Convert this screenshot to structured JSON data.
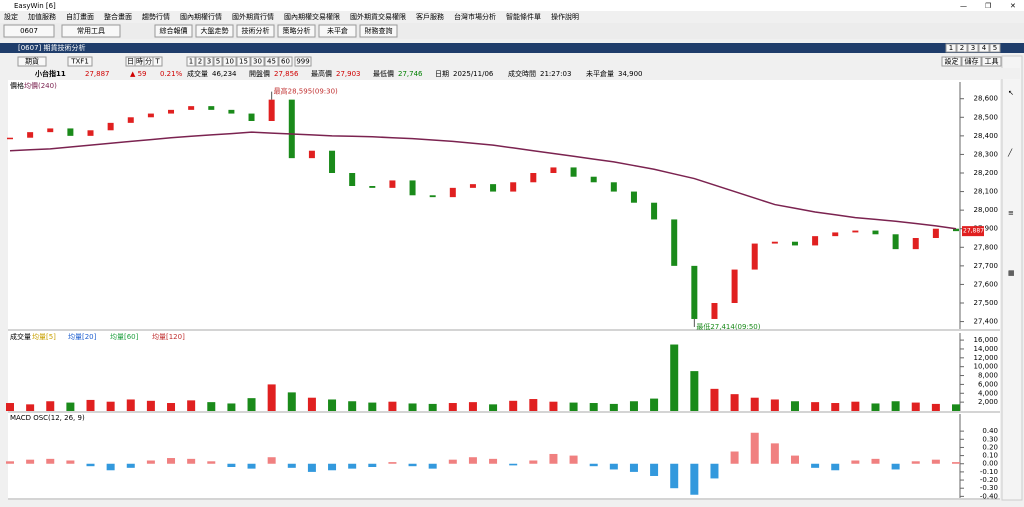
{
  "window": {
    "title": "EasyWin [6]"
  },
  "menu": [
    "設定",
    "加值服務",
    "自訂畫面",
    "整合畫面",
    "趨勢行情",
    "國內期權行情",
    "國外期貨行情",
    "國內期權交易權限",
    "國外期貨交易權限",
    "客戶服務",
    "台灣市場分析",
    "智能條件單",
    "操作說明"
  ],
  "toolbar": {
    "code": "0607",
    "tools": "常用工具",
    "buttons": [
      "綜合報價",
      "大盤走勢",
      "技術分析",
      "策略分析",
      "未平倉",
      "財務查詢"
    ]
  },
  "panel": {
    "title": "[0607] 期貨技術分析",
    "layouts": [
      "1",
      "2",
      "3",
      "4",
      "5"
    ],
    "product": "期貨",
    "symbol": "TXF1",
    "periods": [
      "日",
      "時",
      "分",
      "T"
    ],
    "intervals": [
      "1",
      "2",
      "3",
      "5",
      "10",
      "15",
      "30",
      "45",
      "60"
    ],
    "count": "999",
    "actions": [
      "設定",
      "儲存",
      "工具"
    ]
  },
  "quote": {
    "name": "小台指11",
    "price": "27,887",
    "change": "▲ 59",
    "pct": "0.21%",
    "fields": [
      {
        "label": "成交量",
        "value": "46,234",
        "color": "#000000"
      },
      {
        "label": "開盤價",
        "value": "27,856",
        "color": "#d00000"
      },
      {
        "label": "最高價",
        "value": "27,903",
        "color": "#d00000"
      },
      {
        "label": "最低價",
        "value": "27,746",
        "color": "#008000"
      },
      {
        "label": "日期",
        "value": "2025/11/06",
        "color": "#000000"
      },
      {
        "label": "成交時間",
        "value": "21:27:03",
        "color": "#000000"
      },
      {
        "label": "未平倉量",
        "value": "34,900",
        "color": "#000000"
      }
    ]
  },
  "chart_data": [
    {
      "type": "candlestick",
      "title": "價格",
      "up_color": "#e02020",
      "down_color": "#1a8a1a",
      "series": [
        {
          "name": "價格",
          "color": "#1a8a1a",
          "values": [
            28390,
            28420,
            28440,
            28400,
            28430,
            28470,
            28500,
            28520,
            28540,
            28560,
            28540,
            28520,
            28480,
            28595,
            28280,
            28320,
            28200,
            28130,
            28120,
            28160,
            28080,
            28070,
            28120,
            28140,
            28100,
            28150,
            28200,
            28230,
            28180,
            28150,
            28100,
            28040,
            27950,
            27700,
            27414,
            27500,
            27680,
            27820,
            27830,
            27810,
            27860,
            27880,
            27890,
            27870,
            27790,
            27850,
            27900,
            27887
          ]
        },
        {
          "name": "均價(240)",
          "color": "#7b2350",
          "values": [
            28320,
            28325,
            28330,
            28340,
            28350,
            28360,
            28370,
            28380,
            28390,
            28398,
            28405,
            28412,
            28420,
            28415,
            28410,
            28405,
            28400,
            28398,
            28395,
            28390,
            28385,
            28378,
            28370,
            28360,
            28350,
            28335,
            28320,
            28305,
            28290,
            28275,
            28260,
            28240,
            28220,
            28195,
            28170,
            28135,
            28100,
            28065,
            28030,
            28010,
            27990,
            27975,
            27960,
            27950,
            27940,
            27928,
            27915,
            27900
          ]
        }
      ],
      "ylim": [
        27360,
        28690
      ],
      "yticks": [
        {
          "value": 28600,
          "label": "28,600"
        },
        {
          "value": 28500,
          "label": "28,500"
        },
        {
          "value": 28400,
          "label": "28,400"
        },
        {
          "value": 28300,
          "label": "28,300"
        },
        {
          "value": 28200,
          "label": "28,200"
        },
        {
          "value": 28100,
          "label": "28,100"
        },
        {
          "value": 28000,
          "label": "28,000"
        },
        {
          "value": 27900,
          "label": "27,900"
        },
        {
          "value": 27800,
          "label": "27,800"
        },
        {
          "value": 27700,
          "label": "27,700"
        },
        {
          "value": 27600,
          "label": "27,600"
        },
        {
          "value": 27500,
          "label": "27,500"
        },
        {
          "value": 27400,
          "label": "27,400"
        }
      ],
      "annotations": [
        {
          "text": "最高28,595(09:30)",
          "value": 28595
        },
        {
          "text": "最低27,414(09:50)",
          "value": 27414
        }
      ]
    },
    {
      "type": "bar",
      "title": "成交量",
      "legend": [
        {
          "name": "均量[5]",
          "color": "#c8a000"
        },
        {
          "name": "均量[20]",
          "color": "#2060d0"
        },
        {
          "name": "均量[60]",
          "color": "#20a040"
        },
        {
          "name": "均量[120]",
          "color": "#c03030"
        }
      ],
      "values": [
        1800,
        1500,
        2200,
        1900,
        2500,
        2100,
        2600,
        2300,
        1800,
        2400,
        2000,
        1700,
        2900,
        6000,
        4200,
        3000,
        2600,
        2200,
        1900,
        2100,
        1700,
        1600,
        1800,
        2000,
        1500,
        2300,
        2700,
        2100,
        1900,
        1800,
        1600,
        2200,
        2800,
        15000,
        9000,
        5000,
        3800,
        3000,
        2600,
        2200,
        2000,
        1800,
        2100,
        1700,
        2200,
        1900,
        1600,
        1500
      ],
      "ylim": [
        0,
        17600
      ],
      "yticks": [
        {
          "value": 2000,
          "label": "2,000"
        },
        {
          "value": 4000,
          "label": "4,000"
        },
        {
          "value": 6000,
          "label": "6,000"
        },
        {
          "value": 8000,
          "label": "8,000"
        },
        {
          "value": 10000,
          "label": "10,000"
        },
        {
          "value": 12000,
          "label": "12,000"
        },
        {
          "value": 14000,
          "label": "14,000"
        },
        {
          "value": 16000,
          "label": "16,000"
        }
      ]
    },
    {
      "type": "bar",
      "title": "MACD OSC(12, 26, 9)",
      "up_color": "#f08080",
      "down_color": "#3399dd",
      "values": [
        0.03,
        0.05,
        0.06,
        0.04,
        -0.03,
        -0.08,
        -0.05,
        0.04,
        0.07,
        0.06,
        0.03,
        -0.04,
        -0.06,
        0.08,
        -0.05,
        -0.1,
        -0.08,
        -0.06,
        -0.04,
        0.02,
        -0.03,
        -0.06,
        0.05,
        0.08,
        0.06,
        -0.02,
        0.04,
        0.12,
        0.1,
        -0.03,
        -0.07,
        -0.1,
        -0.15,
        -0.3,
        -0.38,
        -0.18,
        0.15,
        0.38,
        0.25,
        0.1,
        -0.05,
        -0.08,
        0.04,
        0.06,
        -0.07,
        0.03,
        0.05,
        0.02
      ],
      "ylim": [
        -0.42,
        0.61
      ],
      "yticks": [
        {
          "value": 0.4,
          "label": "0.40"
        },
        {
          "value": 0.3,
          "label": "0.30"
        },
        {
          "value": 0.2,
          "label": "0.20"
        },
        {
          "value": 0.1,
          "label": "0.10"
        },
        {
          "value": 0,
          "label": "0.00"
        },
        {
          "value": -0.1,
          "label": "-0.10"
        },
        {
          "value": -0.2,
          "label": "-0.20"
        },
        {
          "value": -0.3,
          "label": "-0.30"
        },
        {
          "value": -0.4,
          "label": "-0.40"
        }
      ]
    }
  ]
}
